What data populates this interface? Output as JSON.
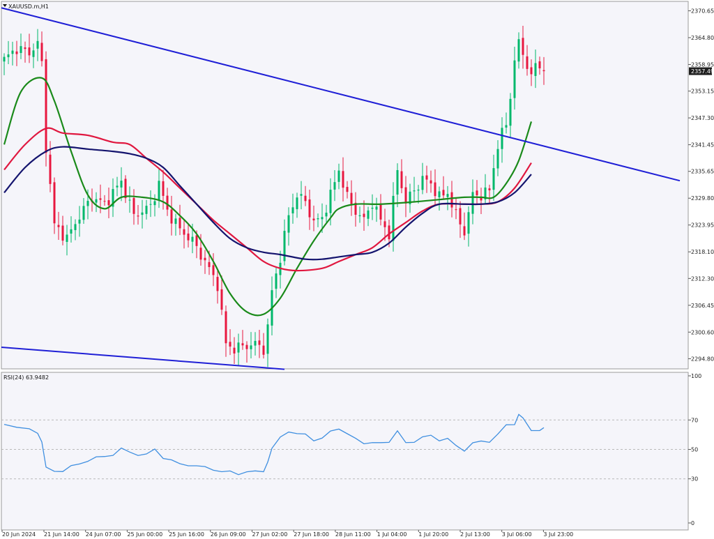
{
  "chart_data": {
    "type": "candlestick",
    "symbol_label": "XAUUSD.m,H1",
    "menu_icon": "triangle-down-icon",
    "price_axis": {
      "ylim": [
        2291.0,
        2372.0
      ],
      "tick_labels": [
        "2370.65",
        "2364.80",
        "2358.95",
        "2353.15",
        "2347.30",
        "2341.45",
        "2335.65",
        "2329.80",
        "2323.95",
        "2318.10",
        "2312.30",
        "2306.45",
        "2300.60",
        "2294.80"
      ],
      "current_price": "2357.49"
    },
    "time_axis": {
      "tick_labels": [
        "20 Jun 2024",
        "21 Jun 14:00",
        "24 Jun 07:00",
        "25 Jun 00:00",
        "25 Jun 16:00",
        "26 Jun 09:00",
        "27 Jun 02:00",
        "27 Jun 18:00",
        "28 Jun 11:00",
        "1 Jul 04:00",
        "1 Jul 20:00",
        "2 Jul 13:00",
        "3 Jul 06:00",
        "3 Jul 23:00"
      ]
    },
    "candles": {
      "count": 130,
      "anchors": [
        [
          0,
          2360.0
        ],
        [
          3,
          2362.5
        ],
        [
          6,
          2361.5
        ],
        [
          8,
          2363.5
        ],
        [
          9,
          2359.0
        ],
        [
          10,
          2341.0
        ],
        [
          12,
          2324.0
        ],
        [
          15,
          2321.0
        ],
        [
          18,
          2326.0
        ],
        [
          21,
          2330.0
        ],
        [
          24,
          2328.5
        ],
        [
          28,
          2333.5
        ],
        [
          31,
          2326.0
        ],
        [
          35,
          2328.0
        ],
        [
          37,
          2333.0
        ],
        [
          39,
          2327.0
        ],
        [
          42,
          2323.0
        ],
        [
          45,
          2320.5
        ],
        [
          48,
          2316.0
        ],
        [
          51,
          2311.0
        ],
        [
          53,
          2298.0
        ],
        [
          55,
          2297.0
        ],
        [
          57,
          2297.5
        ],
        [
          60,
          2298.0
        ],
        [
          62,
          2297.0
        ],
        [
          63,
          2301.5
        ],
        [
          64,
          2309.5
        ],
        [
          66,
          2317.0
        ],
        [
          68,
          2326.0
        ],
        [
          70,
          2330.5
        ],
        [
          72,
          2329.0
        ],
        [
          74,
          2324.5
        ],
        [
          76,
          2325.5
        ],
        [
          78,
          2330.5
        ],
        [
          80,
          2336.0
        ],
        [
          82,
          2330.0
        ],
        [
          84,
          2327.0
        ],
        [
          86,
          2325.0
        ],
        [
          88,
          2329.0
        ],
        [
          90,
          2325.0
        ],
        [
          92,
          2322.0
        ],
        [
          94,
          2336.0
        ],
        [
          96,
          2329.0
        ],
        [
          98,
          2331.5
        ],
        [
          100,
          2334.0
        ],
        [
          102,
          2333.0
        ],
        [
          104,
          2330.0
        ],
        [
          106,
          2331.0
        ],
        [
          108,
          2326.0
        ],
        [
          110,
          2322.5
        ],
        [
          112,
          2330.5
        ],
        [
          114,
          2330.5
        ],
        [
          116,
          2331.5
        ],
        [
          118,
          2341.5
        ],
        [
          120,
          2346.0
        ],
        [
          121,
          2352.0
        ],
        [
          122,
          2360.0
        ],
        [
          123,
          2363.5
        ],
        [
          125,
          2359.0
        ],
        [
          126,
          2356.0
        ],
        [
          127,
          2359.0
        ],
        [
          129,
          2357.49
        ]
      ]
    },
    "moving_averages": [
      {
        "color": "#1a8a1a",
        "points": [
          [
            0,
            2341.5
          ],
          [
            4,
            2353.0
          ],
          [
            9,
            2356.0
          ],
          [
            12,
            2351.0
          ],
          [
            16,
            2340.0
          ],
          [
            20,
            2330.5
          ],
          [
            24,
            2327.5
          ],
          [
            28,
            2330.0
          ],
          [
            33,
            2330.0
          ],
          [
            38,
            2329.0
          ],
          [
            42,
            2326.0
          ],
          [
            46,
            2322.0
          ],
          [
            50,
            2316.0
          ],
          [
            54,
            2309.0
          ],
          [
            58,
            2305.0
          ],
          [
            62,
            2304.5
          ],
          [
            66,
            2308.0
          ],
          [
            70,
            2314.5
          ],
          [
            74,
            2320.5
          ],
          [
            78,
            2325.5
          ],
          [
            80,
            2327.5
          ],
          [
            84,
            2328.5
          ],
          [
            90,
            2328.5
          ],
          [
            98,
            2329.0
          ],
          [
            104,
            2329.5
          ],
          [
            110,
            2330.0
          ],
          [
            114,
            2330.0
          ],
          [
            117,
            2330.0
          ],
          [
            120,
            2333.0
          ],
          [
            123,
            2338.0
          ],
          [
            126,
            2346.5
          ]
        ]
      },
      {
        "color": "#e0173f",
        "points": [
          [
            0,
            2336.0
          ],
          [
            5,
            2341.5
          ],
          [
            10,
            2345.0
          ],
          [
            14,
            2344.0
          ],
          [
            20,
            2343.5
          ],
          [
            26,
            2342.0
          ],
          [
            30,
            2341.5
          ],
          [
            34,
            2338.5
          ],
          [
            38,
            2335.5
          ],
          [
            42,
            2332.0
          ],
          [
            46,
            2328.5
          ],
          [
            50,
            2325.0
          ],
          [
            54,
            2322.0
          ],
          [
            58,
            2319.0
          ],
          [
            62,
            2316.0
          ],
          [
            66,
            2314.5
          ],
          [
            70,
            2314.0
          ],
          [
            76,
            2314.5
          ],
          [
            80,
            2316.0
          ],
          [
            84,
            2317.5
          ],
          [
            88,
            2319.0
          ],
          [
            92,
            2322.0
          ],
          [
            96,
            2324.5
          ],
          [
            100,
            2327.0
          ],
          [
            104,
            2328.5
          ],
          [
            110,
            2328.5
          ],
          [
            114,
            2328.5
          ],
          [
            118,
            2329.0
          ],
          [
            122,
            2332.0
          ],
          [
            126,
            2337.5
          ]
        ]
      },
      {
        "color": "#14146e",
        "points": [
          [
            0,
            2331.0
          ],
          [
            5,
            2336.5
          ],
          [
            10,
            2340.0
          ],
          [
            14,
            2341.0
          ],
          [
            20,
            2340.5
          ],
          [
            26,
            2340.0
          ],
          [
            30,
            2339.5
          ],
          [
            34,
            2338.5
          ],
          [
            38,
            2336.5
          ],
          [
            42,
            2332.5
          ],
          [
            46,
            2328.5
          ],
          [
            50,
            2324.5
          ],
          [
            54,
            2321.0
          ],
          [
            58,
            2319.0
          ],
          [
            62,
            2318.0
          ],
          [
            66,
            2317.5
          ],
          [
            72,
            2316.5
          ],
          [
            76,
            2316.5
          ],
          [
            80,
            2317.0
          ],
          [
            84,
            2317.5
          ],
          [
            88,
            2318.0
          ],
          [
            92,
            2320.0
          ],
          [
            96,
            2323.5
          ],
          [
            100,
            2326.5
          ],
          [
            104,
            2328.5
          ],
          [
            110,
            2328.5
          ],
          [
            114,
            2328.5
          ],
          [
            118,
            2329.0
          ],
          [
            122,
            2331.0
          ],
          [
            126,
            2335.0
          ]
        ]
      }
    ],
    "trendlines": [
      {
        "color": "#1f1fd6",
        "start": [
          0,
          2371.3
        ],
        "end": [
          161.5,
          2333.6
        ]
      },
      {
        "color": "#1f1fd6",
        "start": [
          0,
          2297.3
        ],
        "end": [
          67,
          2292.5
        ]
      }
    ],
    "rsi": {
      "label": "RSI(24) 63.9482",
      "ylim": [
        0,
        100
      ],
      "tick_labels": [
        "100",
        "70",
        "50",
        "30",
        "0"
      ],
      "levels": [
        70,
        50,
        30
      ],
      "color": "#3f8fe0",
      "points": [
        [
          0,
          67
        ],
        [
          3,
          65
        ],
        [
          6,
          64
        ],
        [
          8,
          62
        ],
        [
          9,
          55
        ],
        [
          10,
          37
        ],
        [
          12,
          35
        ],
        [
          14,
          36
        ],
        [
          16,
          38
        ],
        [
          18,
          40
        ],
        [
          20,
          43
        ],
        [
          22,
          44
        ],
        [
          24,
          45
        ],
        [
          26,
          47
        ],
        [
          28,
          50
        ],
        [
          30,
          48
        ],
        [
          32,
          47
        ],
        [
          34,
          46
        ],
        [
          36,
          50
        ],
        [
          38,
          45
        ],
        [
          40,
          42
        ],
        [
          42,
          40
        ],
        [
          44,
          40
        ],
        [
          46,
          38
        ],
        [
          48,
          38
        ],
        [
          50,
          37
        ],
        [
          52,
          34
        ],
        [
          54,
          35
        ],
        [
          56,
          34
        ],
        [
          58,
          34
        ],
        [
          60,
          35
        ],
        [
          62,
          36
        ],
        [
          63,
          41
        ],
        [
          64,
          50
        ],
        [
          66,
          58
        ],
        [
          68,
          63
        ],
        [
          70,
          60
        ],
        [
          72,
          60
        ],
        [
          74,
          57
        ],
        [
          76,
          57
        ],
        [
          78,
          62
        ],
        [
          80,
          65
        ],
        [
          82,
          60
        ],
        [
          84,
          57
        ],
        [
          86,
          55
        ],
        [
          88,
          54
        ],
        [
          90,
          54
        ],
        [
          92,
          56
        ],
        [
          94,
          62
        ],
        [
          96,
          54
        ],
        [
          98,
          56
        ],
        [
          100,
          58
        ],
        [
          102,
          59
        ],
        [
          104,
          57
        ],
        [
          106,
          57
        ],
        [
          108,
          52
        ],
        [
          110,
          50
        ],
        [
          112,
          54
        ],
        [
          114,
          55
        ],
        [
          116,
          56
        ],
        [
          118,
          60
        ],
        [
          120,
          66
        ],
        [
          122,
          68
        ],
        [
          123,
          73
        ],
        [
          124,
          71
        ],
        [
          126,
          62
        ],
        [
          128,
          64
        ],
        [
          129,
          64
        ]
      ]
    }
  }
}
